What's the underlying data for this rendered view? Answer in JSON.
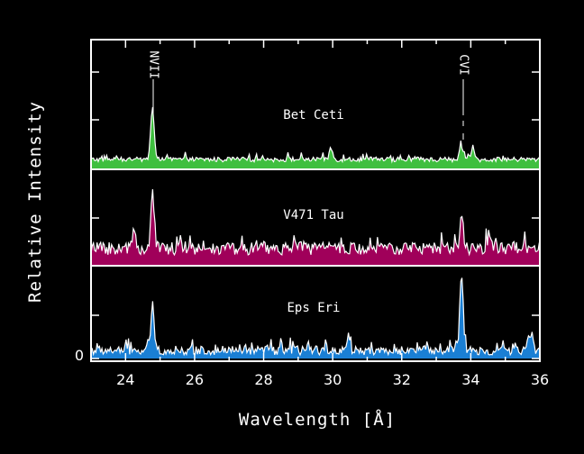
{
  "chart_data": {
    "type": "area",
    "xlabel": "Wavelength [Å]",
    "ylabel": "Relative Intensity",
    "xlim": [
      23.0,
      36.0
    ],
    "x_ticks": [
      24,
      26,
      28,
      30,
      32,
      34,
      36
    ],
    "y_zero_label": "0",
    "line_ids": [
      {
        "label": "NVII",
        "wavelength": 24.78
      },
      {
        "label": "CVI",
        "wavelength": 33.73
      }
    ],
    "series": [
      {
        "name": "Bet Ceti",
        "color": "#3fbf3f",
        "baseline_level": 0.08,
        "noise_level": 0.05,
        "peaks": [
          {
            "x": 24.78,
            "height": 0.55
          },
          {
            "x": 29.95,
            "height": 0.12
          },
          {
            "x": 33.73,
            "height": 0.14
          },
          {
            "x": 34.05,
            "height": 0.1
          }
        ]
      },
      {
        "name": "V471 Tau",
        "color": "#a0005a",
        "baseline_level": 0.12,
        "noise_level": 0.14,
        "peaks": [
          {
            "x": 24.78,
            "height": 0.62
          },
          {
            "x": 24.25,
            "height": 0.22
          },
          {
            "x": 33.73,
            "height": 0.38
          },
          {
            "x": 34.55,
            "height": 0.2
          }
        ]
      },
      {
        "name": "Eps Eri",
        "color": "#1a7fd4",
        "baseline_level": 0.04,
        "noise_level": 0.1,
        "peaks": [
          {
            "x": 24.78,
            "height": 0.5
          },
          {
            "x": 33.73,
            "height": 0.88
          },
          {
            "x": 35.75,
            "height": 0.2
          },
          {
            "x": 30.45,
            "height": 0.16
          }
        ]
      }
    ]
  },
  "labels": {
    "nvii": "NVII",
    "cvi": "CVI",
    "bet_ceti": "Bet Ceti",
    "v471_tau": "V471 Tau",
    "eps_eri": "Eps Eri",
    "zero": "0",
    "xlabel": "Wavelength [Å]",
    "ylabel": "Relative Intensity"
  }
}
